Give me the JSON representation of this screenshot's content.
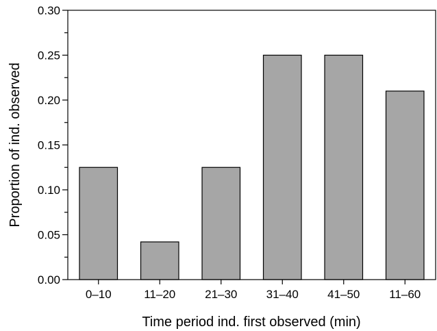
{
  "chart_data": {
    "type": "bar",
    "categories": [
      "0–10",
      "11–20",
      "21–30",
      "31–40",
      "41–50",
      "11–60"
    ],
    "values": [
      0.125,
      0.042,
      0.125,
      0.25,
      0.25,
      0.21
    ],
    "title": "",
    "xlabel": "Time period ind. first observed (min)",
    "ylabel": "Proportion of ind. observed",
    "ylim": [
      0,
      0.3
    ],
    "yticks": [
      "0.00",
      "0.05",
      "0.10",
      "0.15",
      "0.20",
      "0.25",
      "0.30"
    ],
    "bar_color": "#a6a6a6",
    "grid": false
  }
}
